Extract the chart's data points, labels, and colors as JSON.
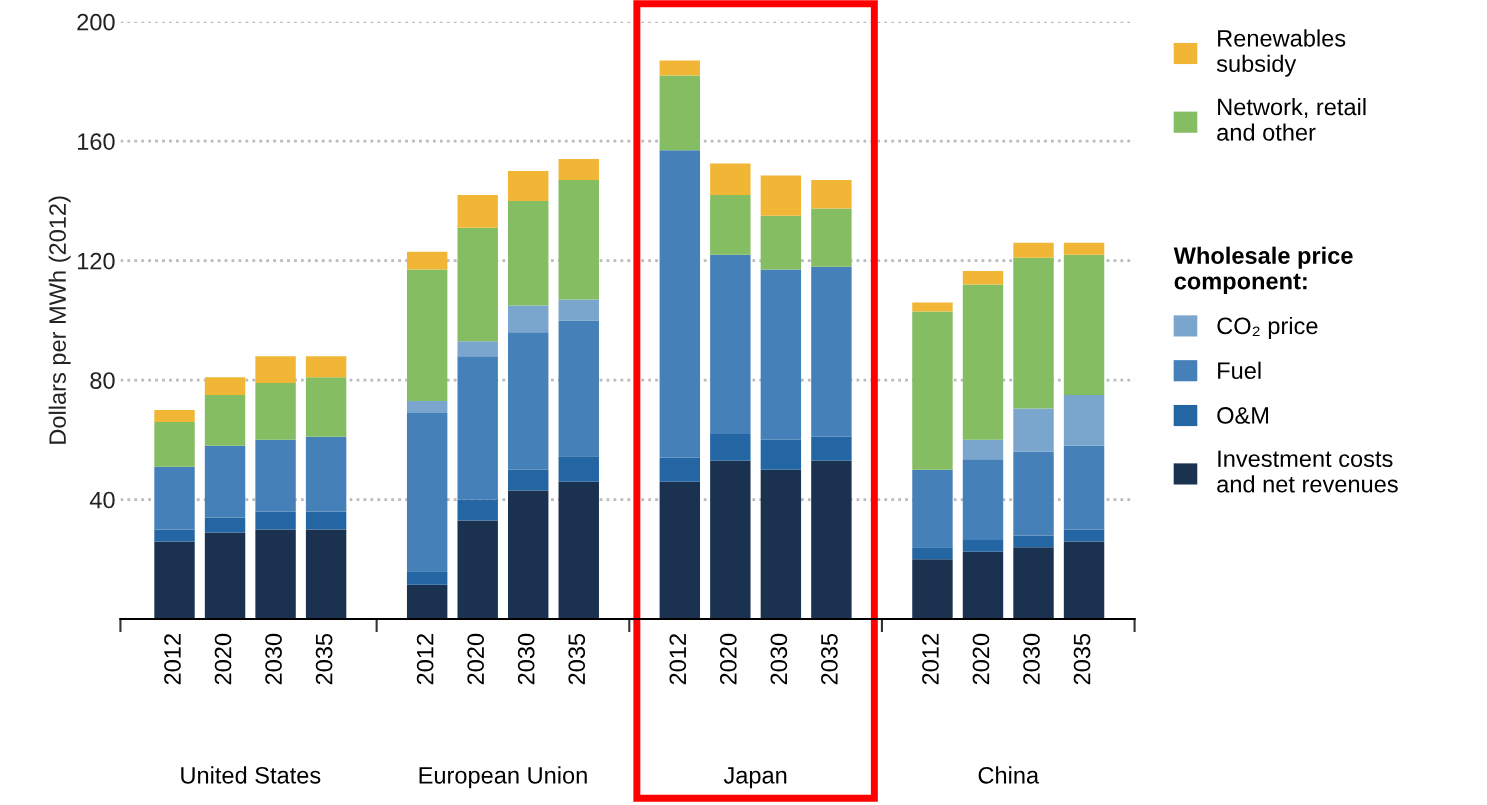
{
  "chart_data": {
    "type": "bar",
    "stacked": true,
    "categories": [
      "2012",
      "2020",
      "2030",
      "2035",
      null,
      "2012",
      "2020",
      "2030",
      "2035",
      null,
      "2012",
      "2020",
      "2030",
      "2035",
      null,
      "2012",
      "2020",
      "2030",
      "2035"
    ],
    "ylabel": "Dollars per MWh (2012)",
    "legend_title": "Wholesale price\ncomponent:",
    "annotations": [
      "United States",
      "European Union",
      "Japan",
      "China"
    ],
    "ylim": [
      0,
      200
    ],
    "yticks": [
      40,
      80,
      120,
      160,
      200
    ],
    "grid": "y",
    "legend": "right",
    "series": [
      {
        "name": "Investment costs\nand net revenues",
        "color": "#1b3150",
        "values": [
          26,
          29,
          30,
          30,
          null,
          11.5,
          33,
          43,
          46,
          null,
          46,
          53,
          50,
          53,
          null,
          20,
          22.5,
          24,
          26
        ]
      },
      {
        "name": "O&M",
        "color": "#2466a3",
        "values": [
          4,
          5,
          6,
          6,
          null,
          4.5,
          7,
          7,
          8.5,
          null,
          8,
          9,
          10,
          8,
          null,
          4,
          4,
          4,
          4
        ]
      },
      {
        "name": "Fuel",
        "color": "#4581b8",
        "values": [
          21,
          24,
          24,
          25,
          null,
          53,
          48,
          46,
          45.5,
          null,
          103,
          60,
          57,
          57,
          null,
          26,
          27,
          28,
          28
        ]
      },
      {
        "name": "CO₂ price",
        "color": "#7aa5cd",
        "values": [
          0,
          0,
          0,
          0,
          null,
          4,
          5,
          9,
          7,
          null,
          0,
          0,
          0,
          0,
          null,
          0,
          6.5,
          14.5,
          17
        ]
      },
      {
        "name": "Network, retail\nand other",
        "color": "#84bd62",
        "values": [
          15,
          17,
          19,
          20,
          null,
          44,
          38,
          35,
          40,
          null,
          25,
          20,
          18,
          19.5,
          null,
          53,
          52,
          50.5,
          47
        ]
      },
      {
        "name": "Renewables\nsubsidy",
        "color": "#f2b636",
        "values": [
          4,
          6,
          9,
          7,
          null,
          6,
          11,
          10,
          7,
          null,
          5,
          10.5,
          13.5,
          9.5,
          null,
          3,
          4.5,
          5,
          4
        ]
      }
    ]
  }
}
